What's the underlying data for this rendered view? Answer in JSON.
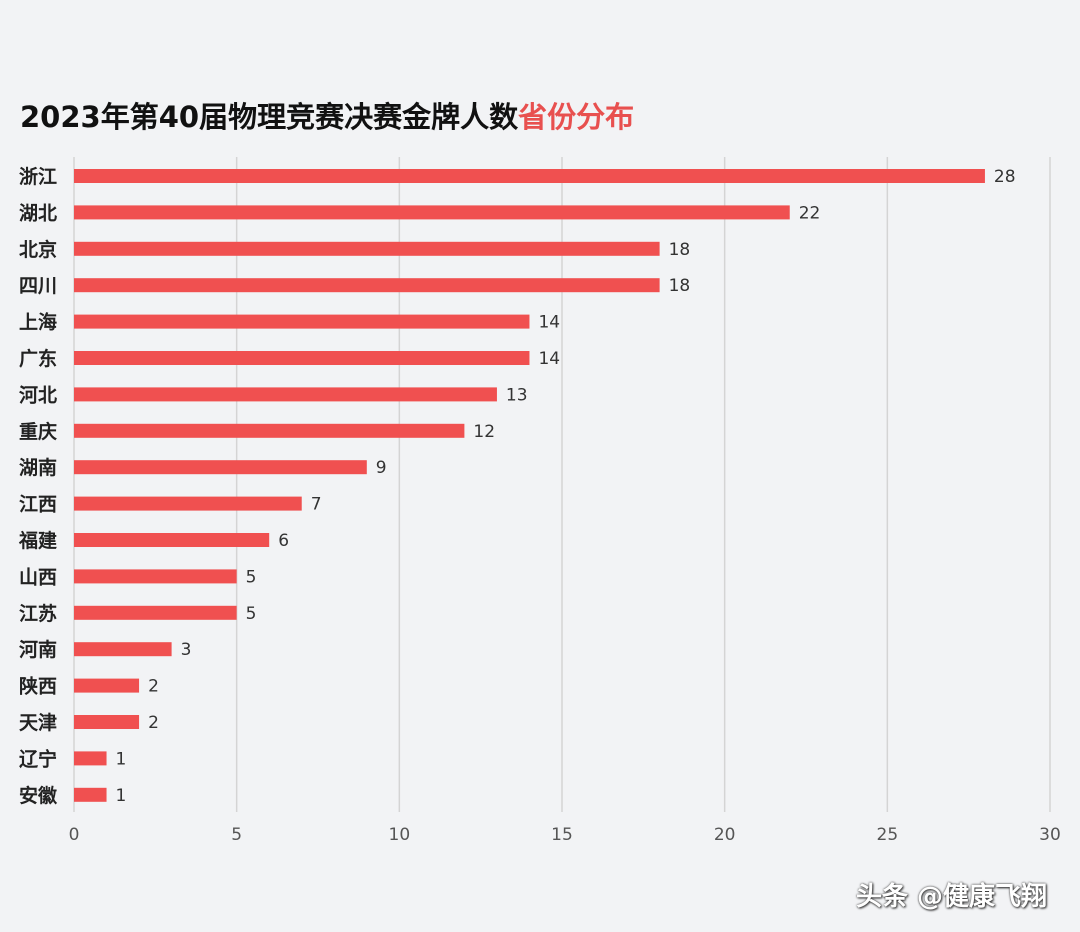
{
  "title": {
    "main": "2023年第40届物理竞赛决赛金牌人数",
    "accent": "省份分布"
  },
  "colors": {
    "bar": "#f05050",
    "grid": "#d4d4d4",
    "text": "#333333",
    "accent": "#e8504f"
  },
  "watermark": "头条 @健康飞翔",
  "chart_data": {
    "type": "bar",
    "orientation": "horizontal",
    "categories": [
      "浙江",
      "湖北",
      "北京",
      "四川",
      "上海",
      "广东",
      "河北",
      "重庆",
      "湖南",
      "江西",
      "福建",
      "山西",
      "江苏",
      "河南",
      "陕西",
      "天津",
      "辽宁",
      "安徽"
    ],
    "values": [
      28,
      22,
      18,
      18,
      14,
      14,
      13,
      12,
      9,
      7,
      6,
      5,
      5,
      3,
      2,
      2,
      1,
      1
    ],
    "xlim": [
      0,
      30
    ],
    "xticks": [
      0,
      5,
      10,
      15,
      20,
      25,
      30
    ],
    "grid": true,
    "data_labels": true
  }
}
